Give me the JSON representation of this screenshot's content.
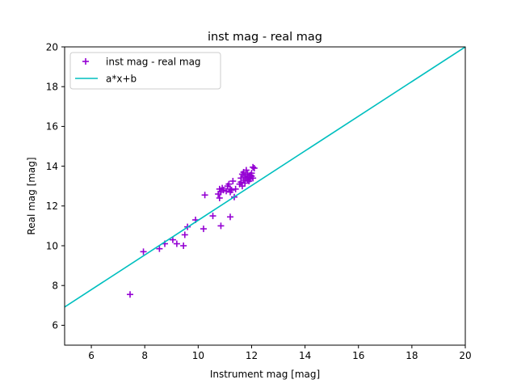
{
  "chart_data": {
    "type": "scatter",
    "title": "inst mag - real mag",
    "xlabel": "Instrument mag [mag]",
    "ylabel": "Real mag [mag]",
    "xlim": [
      5,
      20
    ],
    "ylim": [
      5,
      20
    ],
    "xticks": [
      "6",
      "8",
      "10",
      "12",
      "14",
      "16",
      "18",
      "20"
    ],
    "yticks": [
      "6",
      "8",
      "10",
      "12",
      "14",
      "16",
      "18",
      "20"
    ],
    "grid": false,
    "legend_position": "top-left",
    "series": [
      {
        "name": "inst mag - real mag",
        "kind": "scatter",
        "marker": "+",
        "color": "#9400d3",
        "x": [
          7.45,
          7.95,
          8.55,
          8.75,
          9.05,
          9.2,
          9.45,
          9.5,
          9.6,
          9.9,
          10.25,
          10.2,
          10.55,
          10.85,
          10.75,
          10.8,
          10.8,
          10.85,
          10.9,
          10.95,
          11.05,
          11.1,
          11.15,
          11.2,
          11.2,
          11.25,
          11.3,
          11.35,
          11.4,
          11.55,
          11.6,
          11.6,
          11.65,
          11.65,
          11.7,
          11.7,
          11.75,
          11.75,
          11.8,
          11.8,
          11.85,
          11.85,
          11.9,
          11.9,
          11.95,
          11.95,
          12.0,
          12.0,
          12.05,
          12.05,
          12.1,
          11.2
        ],
        "y": [
          7.55,
          9.7,
          9.85,
          10.1,
          10.3,
          10.1,
          10.0,
          10.55,
          10.95,
          11.3,
          12.55,
          10.85,
          11.5,
          11.0,
          12.6,
          12.85,
          12.4,
          12.7,
          12.9,
          12.8,
          12.75,
          13.0,
          13.1,
          12.7,
          12.85,
          12.8,
          13.25,
          12.45,
          12.85,
          13.1,
          13.2,
          13.4,
          13.0,
          13.6,
          13.3,
          13.7,
          13.15,
          13.5,
          13.4,
          13.8,
          13.3,
          13.6,
          13.45,
          13.25,
          13.55,
          13.35,
          13.5,
          13.65,
          13.95,
          13.4,
          13.9,
          11.45
        ]
      },
      {
        "name": "a*x+b",
        "kind": "line",
        "color": "#00bfbf",
        "x": [
          5,
          20
        ],
        "y": [
          6.92,
          20.0
        ]
      }
    ]
  }
}
